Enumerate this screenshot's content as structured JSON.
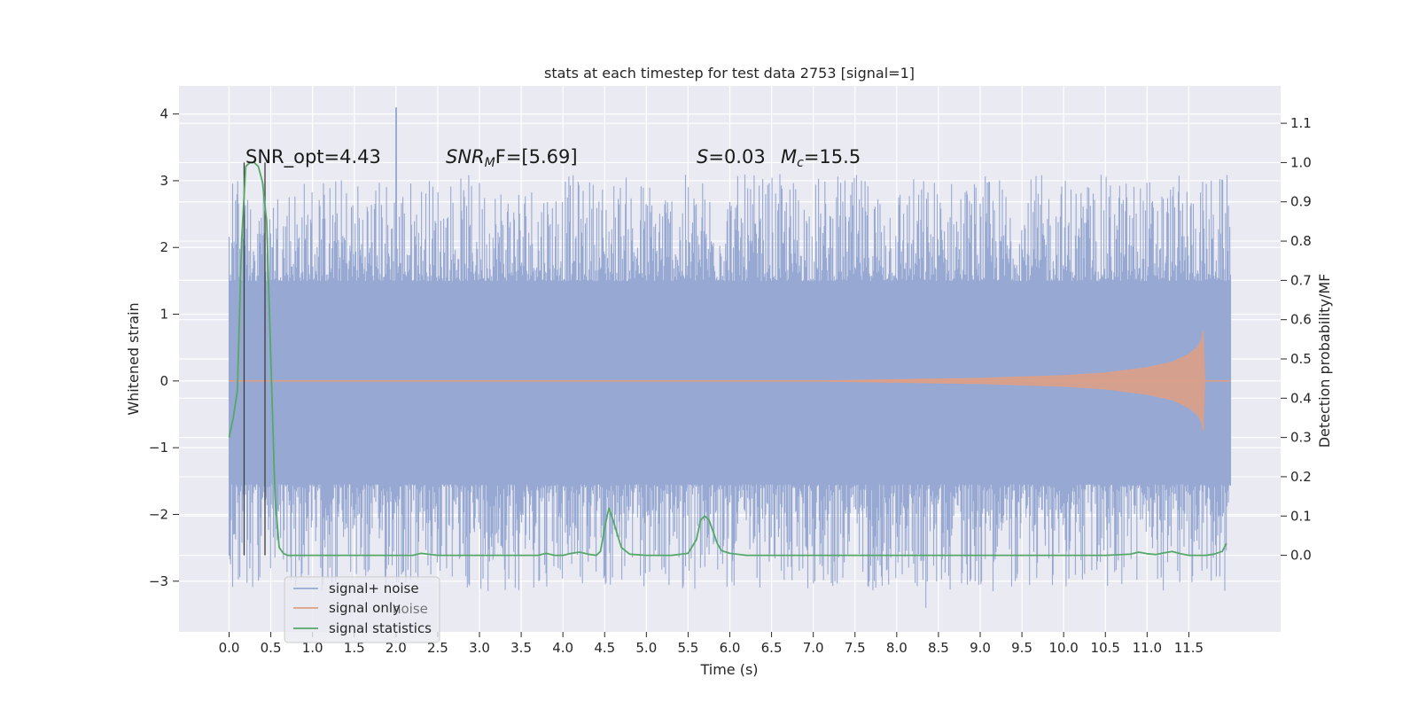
{
  "chart_data": {
    "type": "line",
    "title": "stats at each timestep for test data 2753 [signal=1]",
    "xlabel": "Time (s)",
    "ylabel": "Whitened strain",
    "ylabel_right": "Detection probability/MF",
    "xlim": [
      -0.6,
      12.6
    ],
    "ylim": [
      -3.76,
      4.42
    ],
    "ylim_right": [
      -0.195,
      1.195
    ],
    "x_ticks": [
      "0.0",
      "0.5",
      "1.0",
      "1.5",
      "2.0",
      "2.5",
      "3.0",
      "3.5",
      "4.0",
      "4.5",
      "5.0",
      "5.5",
      "6.0",
      "6.5",
      "7.0",
      "7.5",
      "8.0",
      "8.5",
      "9.0",
      "9.5",
      "10.0",
      "10.5",
      "11.0",
      "11.5"
    ],
    "y_ticks": [
      "−3",
      "−2",
      "−1",
      "0",
      "1",
      "2",
      "3",
      "4"
    ],
    "y_ticks_right": [
      "0.0",
      "0.1",
      "0.2",
      "0.3",
      "0.4",
      "0.5",
      "0.6",
      "0.7",
      "0.8",
      "0.9",
      "1.0",
      "1.1"
    ],
    "grid": true,
    "legend_position": "lower-left",
    "series": [
      {
        "name": "signal+ noise",
        "color": "#97a9d2",
        "axis": "left",
        "x_range": [
          0.0,
          12.0
        ],
        "band_low": -1.55,
        "band_high": 1.5,
        "note_values": "dense noise, min ≈ -3.4, max ≈ 4.1 at t ≈ 2.0"
      },
      {
        "name": "signal only",
        "color": "#dd9f87",
        "axis": "left",
        "x": [
          0.0,
          7.0,
          8.0,
          9.0,
          10.0,
          10.5,
          11.0,
          11.3,
          11.5,
          11.6,
          11.65,
          11.68,
          12.0
        ],
        "amplitude": [
          0.0,
          0.0,
          0.02,
          0.04,
          0.08,
          0.12,
          0.2,
          0.28,
          0.4,
          0.5,
          0.6,
          0.82,
          0.0
        ]
      },
      {
        "name": "signal statistics",
        "color": "#55a868",
        "axis": "right",
        "x": [
          0.0,
          0.05,
          0.1,
          0.15,
          0.2,
          0.25,
          0.3,
          0.35,
          0.4,
          0.45,
          0.5,
          0.55,
          0.6,
          0.65,
          0.7,
          0.8,
          1.0,
          1.5,
          2.0,
          2.2,
          2.3,
          2.5,
          3.0,
          3.5,
          3.7,
          3.8,
          3.9,
          4.0,
          4.1,
          4.2,
          4.3,
          4.4,
          4.45,
          4.5,
          4.55,
          4.6,
          4.7,
          4.8,
          5.0,
          5.3,
          5.5,
          5.6,
          5.65,
          5.7,
          5.75,
          5.8,
          5.85,
          5.9,
          6.0,
          6.2,
          6.5,
          7.0,
          8.0,
          9.0,
          10.0,
          10.5,
          10.8,
          10.9,
          11.0,
          11.1,
          11.2,
          11.3,
          11.4,
          11.5,
          11.6,
          11.7,
          11.8,
          11.9,
          11.95
        ],
        "y": [
          0.3,
          0.35,
          0.42,
          0.8,
          0.99,
          1.0,
          1.0,
          0.99,
          0.95,
          0.85,
          0.5,
          0.15,
          0.02,
          0.005,
          0.0,
          0.0,
          0.0,
          0.0,
          0.0,
          0.0,
          0.005,
          0.0,
          0.0,
          0.0,
          0.0,
          0.005,
          0.0,
          0.0,
          0.005,
          0.008,
          0.003,
          0.0,
          0.01,
          0.07,
          0.12,
          0.09,
          0.02,
          0.003,
          0.0,
          0.0,
          0.005,
          0.04,
          0.09,
          0.1,
          0.09,
          0.06,
          0.03,
          0.012,
          0.005,
          0.0,
          0.0,
          0.0,
          0.0,
          0.0,
          0.0,
          0.0,
          0.003,
          0.008,
          0.004,
          0.002,
          0.006,
          0.01,
          0.004,
          0.0,
          0.0,
          0.0,
          0.003,
          0.01,
          0.03
        ]
      }
    ],
    "vertical_markers_x": [
      0.18,
      0.43
    ],
    "annotations": {
      "snr_opt": "SNR_opt=4.43",
      "snr_mf_prefix": "SNR",
      "snr_mf_sub": "M",
      "snr_mf_suffix": "F=[5.69]",
      "s_symbol": "S",
      "s_value": "=0.03",
      "mc_symbol": "M",
      "mc_sub": "c",
      "mc_value": "=15.5"
    }
  },
  "legend": {
    "items": [
      {
        "label": "signal+ noise",
        "color": "#97a9d2"
      },
      {
        "label": "signal only",
        "color": "#dd9f87"
      },
      {
        "label": "signal statistics",
        "color": "#55a868"
      }
    ],
    "ghost_text": "noise"
  }
}
